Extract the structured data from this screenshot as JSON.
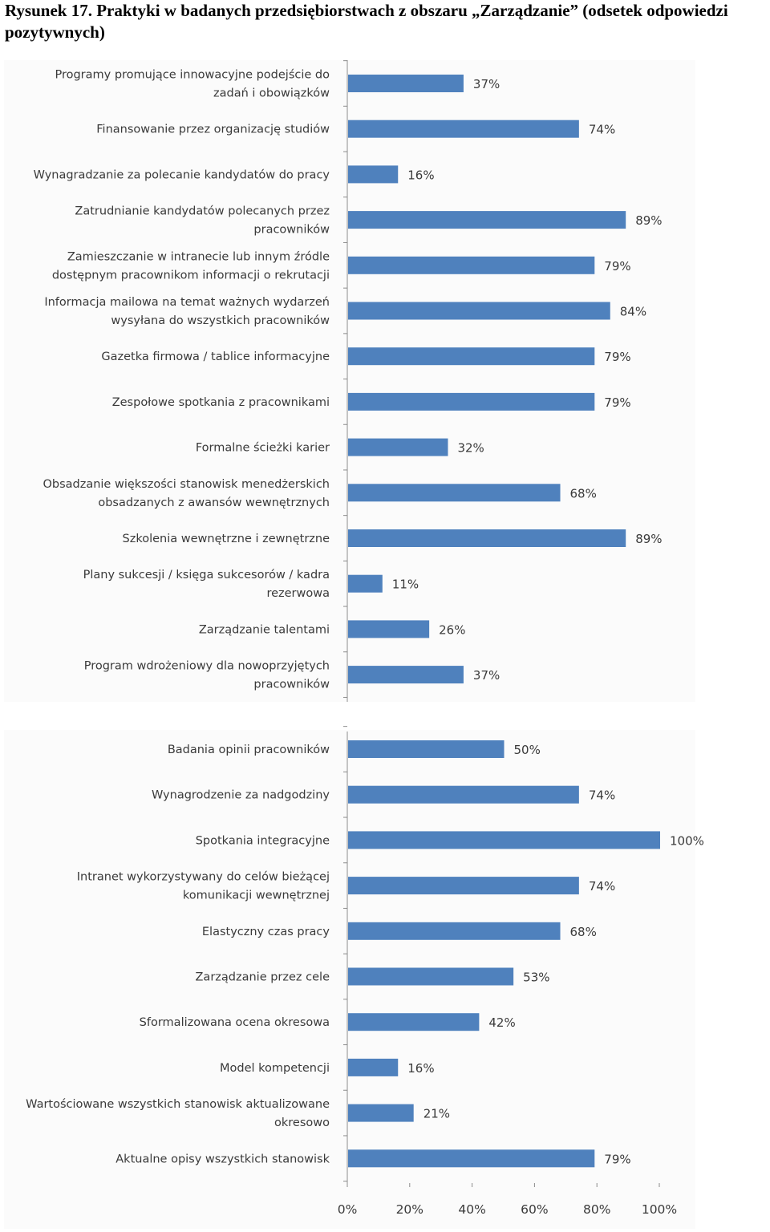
{
  "caption": "Rysunek 17. Praktyki w badanych przedsiębiorstwach z obszaru „Zarządzanie” (odsetek odpowiedzi pozytywnych)",
  "colors": {
    "bar": "#4f81bd",
    "axis": "#8c8c8c",
    "panel": "#fbfbfb"
  },
  "chart_data": [
    {
      "type": "bar",
      "orientation": "horizontal",
      "unit": "%",
      "xlim": [
        0,
        100
      ],
      "categories": [
        [
          "Programy promujące innowacyjne podejście do",
          "zadań i obowiązków"
        ],
        [
          "Finansowanie przez organizację studiów"
        ],
        [
          "Wynagradzanie za polecanie kandydatów  do pracy"
        ],
        [
          "Zatrudnianie kandydatów  polecanych przez",
          "pracowników"
        ],
        [
          "Zamieszczanie w intranecie lub innym źródle",
          "dostępnym pracownikom informacji o rekrutacji"
        ],
        [
          "Informacja mailowa na temat ważnych wydarzeń",
          "wysyłana do wszystkich pracowników"
        ],
        [
          "Gazetka firmowa / tablice informacyjne"
        ],
        [
          "Zespołowe spotkania z pracownikami"
        ],
        [
          "Formalne ścieżki karier"
        ],
        [
          "Obsadzanie większości stanowisk menedżerskich",
          "obsadzanych z awansów wewnętrznych"
        ],
        [
          "Szkolenia wewnętrzne i zewnętrzne"
        ],
        [
          "Plany sukcesji / księga sukcesorów / kadra",
          "rezerwowa"
        ],
        [
          "Zarządzanie talentami"
        ],
        [
          "Program wdrożeniowy dla nowoprzyjętych",
          "pracowników"
        ]
      ],
      "values": [
        37,
        74,
        16,
        89,
        79,
        84,
        79,
        79,
        32,
        68,
        89,
        11,
        26,
        37
      ],
      "labels": [
        "37%",
        "74%",
        "16%",
        "89%",
        "79%",
        "84%",
        "79%",
        "79%",
        "32%",
        "68%",
        "89%",
        "11%",
        "26%",
        "37%"
      ]
    },
    {
      "type": "bar",
      "orientation": "horizontal",
      "unit": "%",
      "xlim": [
        0,
        100
      ],
      "xticks": [
        "0%",
        "20%",
        "40%",
        "60%",
        "80%",
        "100%"
      ],
      "categories": [
        [
          "Badania opinii pracowników"
        ],
        [
          "Wynagrodzenie za nadgodziny"
        ],
        [
          "Spotkania integracyjne"
        ],
        [
          "Intranet wykorzystywany do celów bieżącej",
          "komunikacji wewnętrznej"
        ],
        [
          "Elastyczny czas pracy"
        ],
        [
          "Zarządzanie przez cele"
        ],
        [
          "Sformalizowana ocena okresowa"
        ],
        [
          "Model kompetencji"
        ],
        [
          "Wartościowane wszystkich stanowisk aktualizowane",
          "okresowo"
        ],
        [
          "Aktualne opisy wszystkich stanowisk"
        ]
      ],
      "values": [
        50,
        74,
        100,
        74,
        68,
        53,
        42,
        16,
        21,
        79
      ],
      "labels": [
        "50%",
        "74%",
        "100%",
        "74%",
        "68%",
        "53%",
        "42%",
        "16%",
        "21%",
        "79%"
      ]
    }
  ]
}
